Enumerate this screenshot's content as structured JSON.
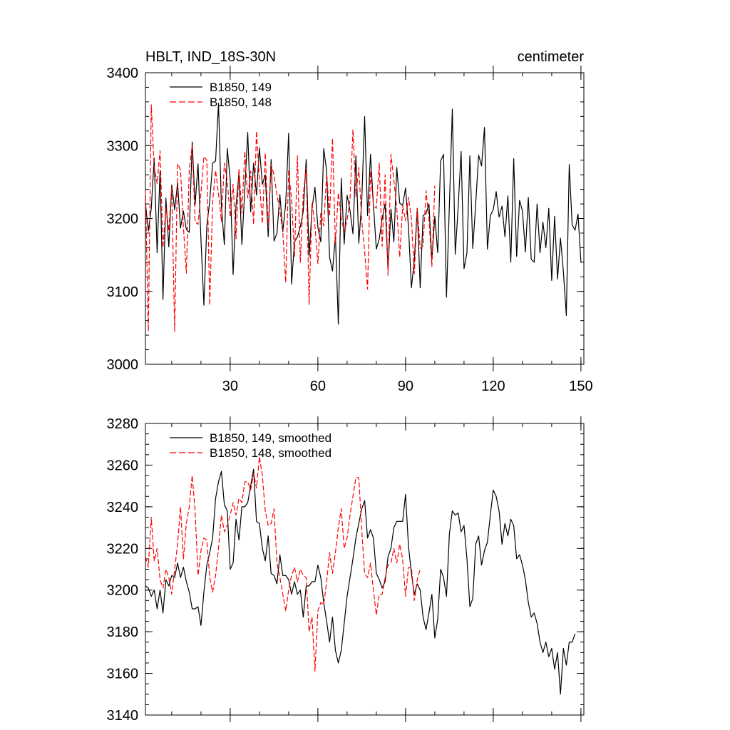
{
  "chart_data": [
    {
      "type": "line",
      "title": "HBLT, IND_18S-30N",
      "units": "centimeter",
      "xlim": [
        1,
        151
      ],
      "ylim": [
        3000,
        3400
      ],
      "xticks": [
        30,
        60,
        90,
        120,
        150
      ],
      "yticks": [
        3000,
        3100,
        3200,
        3300,
        3400
      ],
      "grid": false,
      "legend_position": "top-left",
      "series": [
        {
          "name": "B1850, 149",
          "color": "#000000",
          "dash": "solid",
          "x_start": 1,
          "values": [
            3221,
            3183,
            3214,
            3283,
            3153,
            3265,
            3089,
            3228,
            3161,
            3246,
            3212,
            3249,
            3187,
            3210,
            3185,
            3181,
            3305,
            3219,
            3275,
            3171,
            3081,
            3190,
            3224,
            3276,
            3279,
            3358,
            3216,
            3164,
            3296,
            3254,
            3123,
            3218,
            3262,
            3164,
            3240,
            3318,
            3209,
            3276,
            3232,
            3297,
            3247,
            3260,
            3175,
            3281,
            3169,
            3180,
            3233,
            3182,
            3221,
            3317,
            3110,
            3168,
            3175,
            3189,
            3210,
            3281,
            3148,
            3214,
            3243,
            3188,
            3168,
            3296,
            3265,
            3147,
            3128,
            3176,
            3055,
            3255,
            3165,
            3232,
            3211,
            3179,
            3286,
            3166,
            3223,
            3340,
            3204,
            3288,
            3219,
            3158,
            3172,
            3200,
            3220,
            3131,
            3213,
            3168,
            3270,
            3221,
            3218,
            3242,
            3188,
            3105,
            3143,
            3214,
            3105,
            3204,
            3207,
            3220,
            3143,
            3203,
            3153,
            3279,
            3288,
            3092,
            3219,
            3350,
            3151,
            3216,
            3292,
            3131,
            3153,
            3286,
            3159,
            3220,
            3287,
            3272,
            3325,
            3158,
            3204,
            3212,
            3237,
            3202,
            3217,
            3175,
            3231,
            3140,
            3282,
            3148,
            3225,
            3210,
            3154,
            3229,
            3144,
            3140,
            3220,
            3153,
            3195,
            3160,
            3214,
            3115,
            3203,
            3117,
            3173,
            3127,
            3067,
            3274,
            3191,
            3184,
            3206,
            3140
          ],
          "label_visible": true
        },
        {
          "name": "B1850, 148",
          "color": "#ff0000",
          "dash": "dashed",
          "x_start": 1,
          "values": [
            3238,
            3045,
            3356,
            3270,
            3248,
            3293,
            3160,
            3215,
            3183,
            3243,
            3045,
            3275,
            3267,
            3188,
            3125,
            3268,
            3300,
            3195,
            3192,
            3235,
            3285,
            3280,
            3081,
            3224,
            3266,
            3234,
            3196,
            3276,
            3252,
            3202,
            3247,
            3172,
            3268,
            3207,
            3292,
            3228,
            3265,
            3192,
            3320,
            3251,
            3193,
            3290,
            3187,
            3274,
            3260,
            3232,
            3211,
            3181,
            3112,
            3267,
            3226,
            3148,
            3286,
            3140,
            3233,
            3270,
            3082,
            3222,
            3190,
            3138,
            3207,
            3190,
            3262,
            3203,
            3310,
            3165,
            3235,
            3200,
            3182,
            3198,
            3226,
            3322,
            3230,
            3270,
            3197,
            3155,
            3103,
            3265,
            3218,
            3214,
            3276,
            3162,
            3260,
            3122,
            3288,
            3252,
            3214,
            3147,
            3217,
            3197,
            3229,
            3200,
            3124,
            3214,
            3159,
            3163,
            3238,
            3200,
            3134,
            3245
          ],
          "label_visible": true
        }
      ]
    },
    {
      "type": "line",
      "title": "",
      "xlim": [
        1,
        151
      ],
      "ylim": [
        3140,
        3280
      ],
      "yticks": [
        3140,
        3160,
        3180,
        3200,
        3220,
        3240,
        3260,
        3280
      ],
      "grid": false,
      "legend_position": "top-left",
      "series": [
        {
          "name": "B1850, 149, smoothed",
          "color": "#000000",
          "dash": "solid",
          "x_start": 1,
          "values": [
            3202,
            3201,
            3197,
            3200,
            3191,
            3200,
            3189,
            3205,
            3202,
            3207,
            3206,
            3213,
            3206,
            3211,
            3204,
            3199,
            3191,
            3191,
            3192,
            3183,
            3199,
            3212,
            3218,
            3225,
            3244,
            3252,
            3257,
            3241,
            3238,
            3210,
            3213,
            3234,
            3224,
            3240,
            3240,
            3242,
            3250,
            3258,
            3233,
            3232,
            3220,
            3214,
            3226,
            3208,
            3207,
            3203,
            3217,
            3207,
            3207,
            3205,
            3198,
            3204,
            3198,
            3200,
            3187,
            3202,
            3202,
            3204,
            3204,
            3212,
            3206,
            3194,
            3185,
            3175,
            3187,
            3171,
            3165,
            3171,
            3184,
            3197,
            3206,
            3215,
            3225,
            3232,
            3239,
            3243,
            3225,
            3229,
            3225,
            3208,
            3205,
            3201,
            3204,
            3216,
            3220,
            3230,
            3233,
            3233,
            3233,
            3246,
            3221,
            3208,
            3198,
            3203,
            3200,
            3187,
            3181,
            3189,
            3198,
            3177,
            3186,
            3210,
            3206,
            3197,
            3227,
            3238,
            3236,
            3237,
            3228,
            3231,
            3215,
            3192,
            3196,
            3222,
            3226,
            3212,
            3219,
            3223,
            3236,
            3248,
            3245,
            3238,
            3222,
            3232,
            3226,
            3234,
            3231,
            3215,
            3217,
            3212,
            3205,
            3194,
            3187,
            3189,
            3184,
            3175,
            3170,
            3175,
            3168,
            3172,
            3162,
            3170,
            3150,
            3172,
            3164,
            3175,
            3175,
            3179
          ],
          "label_visible": true
        },
        {
          "name": "B1850, 148, smoothed",
          "color": "#ff0000",
          "dash": "dashed",
          "x_start": 1,
          "values": [
            3216,
            3211,
            3235,
            3214,
            3220,
            3205,
            3201,
            3210,
            3206,
            3198,
            3210,
            3222,
            3240,
            3215,
            3232,
            3240,
            3255,
            3238,
            3207,
            3219,
            3225,
            3224,
            3206,
            3199,
            3207,
            3220,
            3236,
            3228,
            3231,
            3236,
            3242,
            3236,
            3244,
            3242,
            3252,
            3252,
            3248,
            3256,
            3249,
            3264,
            3255,
            3238,
            3231,
            3232,
            3239,
            3213,
            3206,
            3198,
            3190,
            3200,
            3207,
            3211,
            3204,
            3210,
            3207,
            3206,
            3180,
            3187,
            3161,
            3190,
            3194,
            3193,
            3204,
            3218,
            3208,
            3218,
            3230,
            3239,
            3220,
            3225,
            3236,
            3245,
            3254,
            3254,
            3229,
            3208,
            3206,
            3213,
            3200,
            3188,
            3198,
            3198,
            3206,
            3212,
            3213,
            3220,
            3213,
            3222,
            3215,
            3197,
            3211,
            3211,
            3195,
            3205,
            3210
          ],
          "label_visible": true
        }
      ]
    }
  ]
}
